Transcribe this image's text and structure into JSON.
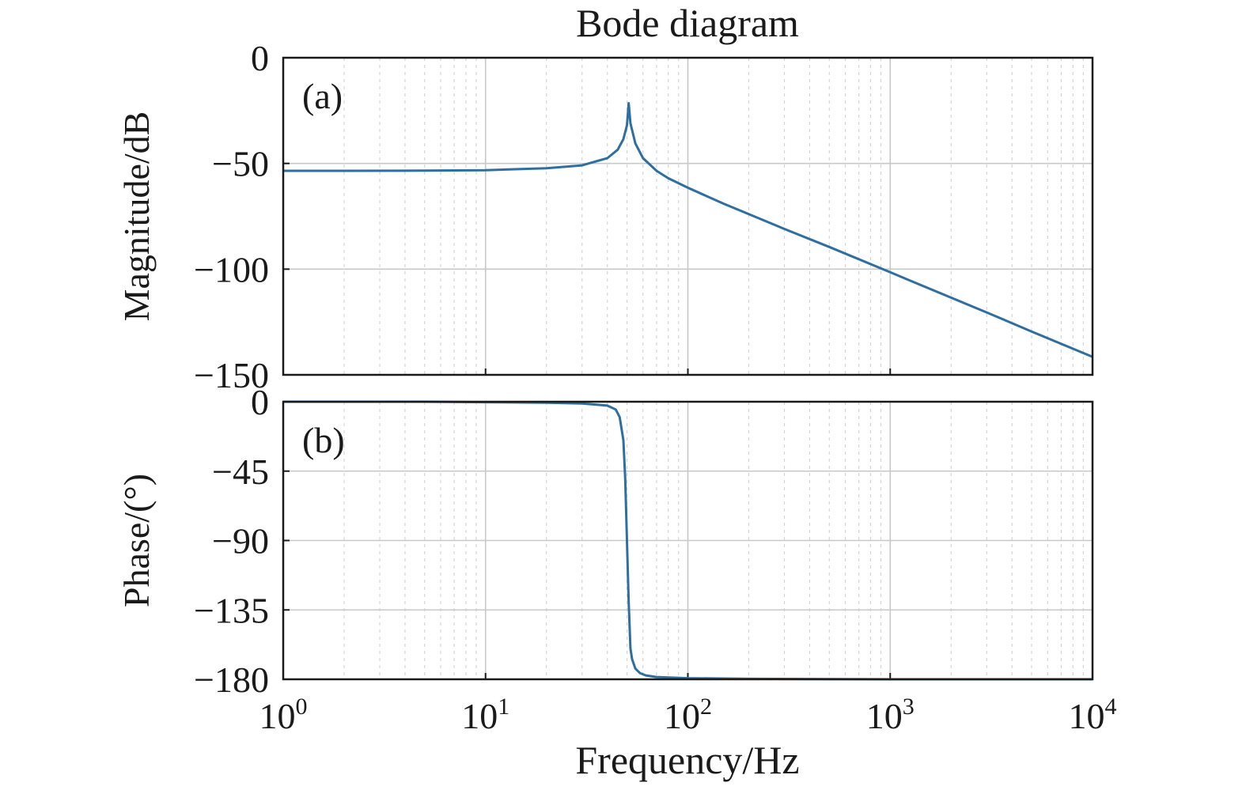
{
  "chart_data": [
    {
      "id": "magnitude",
      "type": "line",
      "panel_label": "(a)",
      "title": "Bode diagram",
      "ylabel": "Magnitude/dB",
      "xscale": "log",
      "xlim": [
        1,
        10000
      ],
      "ylim": [
        -150,
        0
      ],
      "grid": true,
      "x_ticks": [
        {
          "base": "10",
          "exp": "0",
          "value": 1
        },
        {
          "base": "10",
          "exp": "1",
          "value": 10
        },
        {
          "base": "10",
          "exp": "2",
          "value": 100
        },
        {
          "base": "10",
          "exp": "3",
          "value": 1000
        },
        {
          "base": "10",
          "exp": "4",
          "value": 10000
        }
      ],
      "y_ticks": [
        {
          "label": "0",
          "value": 0
        },
        {
          "label": "−50",
          "value": -50
        },
        {
          "label": "−100",
          "value": -100
        },
        {
          "label": "−150",
          "value": -150
        }
      ],
      "series": [
        {
          "x": [
            1,
            2,
            5,
            10,
            20,
            30,
            40,
            45,
            48,
            50,
            51,
            52,
            55,
            60,
            70,
            80,
            100,
            150,
            200,
            300,
            500,
            1000,
            2000,
            3000,
            5000,
            10000
          ],
          "y": [
            -53.5,
            -53.5,
            -53.4,
            -53.2,
            -52.3,
            -50.9,
            -47.5,
            -43.5,
            -38.5,
            -32.0,
            -21.5,
            -31.0,
            -40.5,
            -47.5,
            -53.5,
            -57.0,
            -61.5,
            -69.0,
            -74.0,
            -81.0,
            -89.5,
            -101.5,
            -113.5,
            -120.5,
            -129.5,
            -141.5
          ]
        }
      ]
    },
    {
      "id": "phase",
      "type": "line",
      "panel_label": "(b)",
      "ylabel": "Phase/(°)",
      "xlabel": "Frequency/Hz",
      "xscale": "log",
      "xlim": [
        1,
        10000
      ],
      "ylim": [
        -180,
        0
      ],
      "grid": true,
      "x_ticks": [
        {
          "base": "10",
          "exp": "0",
          "value": 1
        },
        {
          "base": "10",
          "exp": "1",
          "value": 10
        },
        {
          "base": "10",
          "exp": "2",
          "value": 100
        },
        {
          "base": "10",
          "exp": "3",
          "value": 1000
        },
        {
          "base": "10",
          "exp": "4",
          "value": 10000
        }
      ],
      "y_ticks": [
        {
          "label": "0",
          "value": 0
        },
        {
          "label": "−45",
          "value": -45
        },
        {
          "label": "−90",
          "value": -90
        },
        {
          "label": "−135",
          "value": -135
        },
        {
          "label": "−180",
          "value": -180
        }
      ],
      "series": [
        {
          "x": [
            1,
            5,
            10,
            20,
            30,
            40,
            44,
            46,
            48,
            49,
            50,
            51,
            52,
            53,
            55,
            58,
            62,
            70,
            100,
            200,
            1000,
            10000
          ],
          "y": [
            0,
            0,
            -0.3,
            -0.6,
            -1.2,
            -2.5,
            -5,
            -10,
            -25,
            -50,
            -90,
            -130,
            -160,
            -167,
            -173,
            -176,
            -177.5,
            -178.5,
            -179.3,
            -179.7,
            -180,
            -180
          ]
        }
      ]
    }
  ]
}
